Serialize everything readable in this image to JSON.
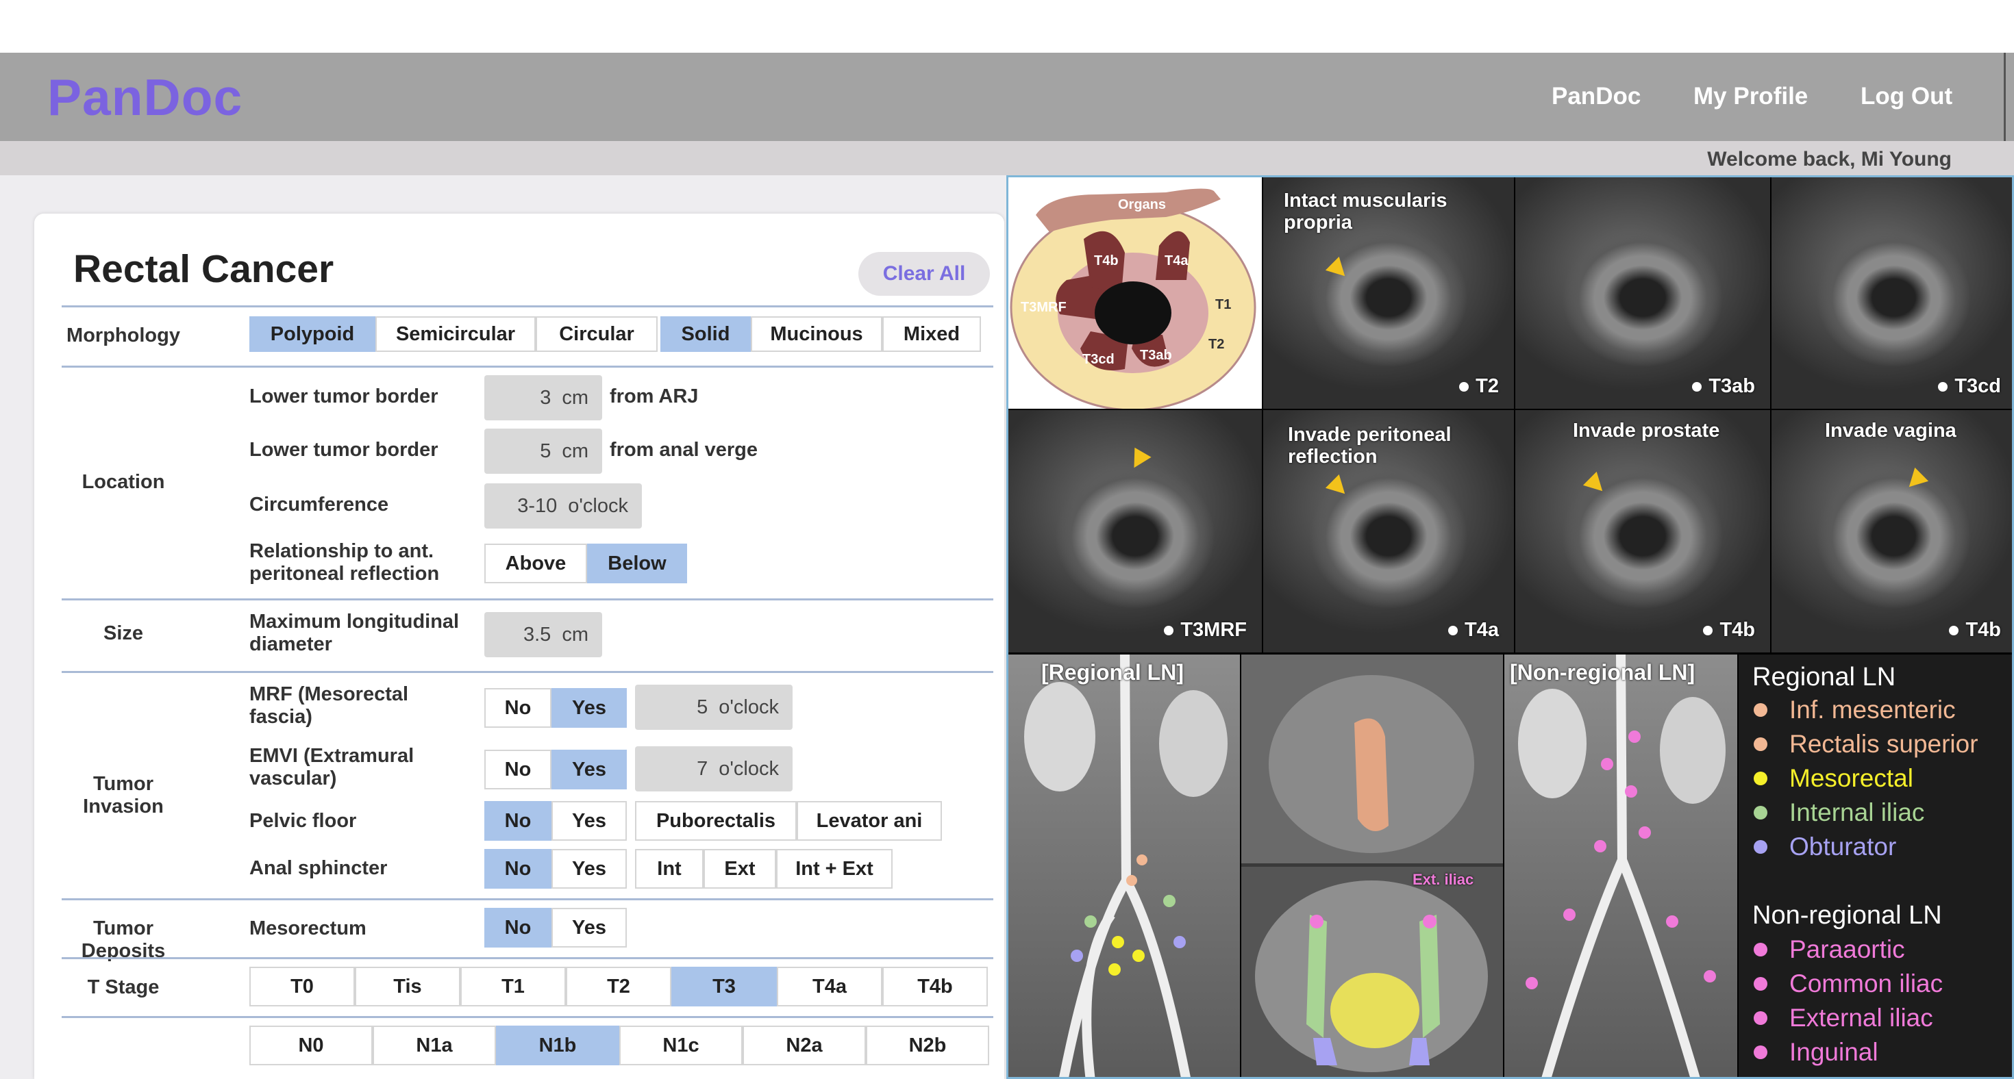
{
  "header": {
    "brand": "PanDoc",
    "nav": [
      "PanDoc",
      "My Profile",
      "Log Out"
    ],
    "welcome": "Welcome back, Mi Young"
  },
  "form": {
    "title": "Rectal Cancer",
    "clear_all": "Clear All",
    "morphology": {
      "label": "Morphology",
      "options": [
        "Polypoid",
        "Semicircular",
        "Circular",
        "Solid",
        "Mucinous",
        "Mixed"
      ],
      "selected": [
        "Polypoid",
        "Solid"
      ]
    },
    "location": {
      "label": "Location",
      "lower_border_arj": {
        "label": "Lower tumor border",
        "value": "3",
        "unit": "cm",
        "suffix": "from ARJ"
      },
      "lower_border_av": {
        "label": "Lower tumor border",
        "value": "5",
        "unit": "cm",
        "suffix": "from anal verge"
      },
      "circumference": {
        "label": "Circumference",
        "value": "3-10",
        "unit": "o'clock"
      },
      "relationship": {
        "label_line1": "Relationship to ant.",
        "label_line2": "peritoneal reflection",
        "options": [
          "Above",
          "Below"
        ],
        "selected": "Below"
      }
    },
    "size": {
      "label": "Size",
      "field_line1": "Maximum longitudinal",
      "field_line2": "diameter",
      "value": "3.5",
      "unit": "cm"
    },
    "tumor_invasion": {
      "label": "Tumor Invasion",
      "mrf": {
        "label_line1": "MRF (Mesorectal",
        "label_line2": "fascia)",
        "options": [
          "No",
          "Yes"
        ],
        "selected": "Yes",
        "value": "5",
        "unit": "o'clock"
      },
      "emvi": {
        "label_line1": "EMVI (Extramural",
        "label_line2": "vascular)",
        "options": [
          "No",
          "Yes"
        ],
        "selected": "Yes",
        "value": "7",
        "unit": "o'clock"
      },
      "pelvic_floor": {
        "label": "Pelvic floor",
        "options": [
          "No",
          "Yes",
          "Puborectalis",
          "Levator ani"
        ],
        "selected": "No"
      },
      "anal_sphincter": {
        "label": "Anal sphincter",
        "options": [
          "No",
          "Yes",
          "Int",
          "Ext",
          "Int + Ext"
        ],
        "selected": "No"
      }
    },
    "tumor_deposits": {
      "label": "Tumor Deposits",
      "mesorectum": {
        "label": "Mesorectum",
        "options": [
          "No",
          "Yes"
        ],
        "selected": "No"
      }
    },
    "t_stage": {
      "label": "T Stage",
      "options": [
        "T0",
        "Tis",
        "T1",
        "T2",
        "T3",
        "T4a",
        "T4b"
      ],
      "selected": "T3"
    },
    "n_stage": {
      "options": [
        "N0",
        "N1a",
        "N1b",
        "N1c",
        "N2a",
        "N2b"
      ],
      "selected": "N1b"
    }
  },
  "reference": {
    "diagram_labels": [
      "Organs",
      "T4b",
      "T4a",
      "T3MRF",
      "T1",
      "T2",
      "T3cd",
      "T3ab"
    ],
    "tiles": [
      {
        "caption": "Intact muscularis propria",
        "tag": "T2"
      },
      {
        "caption": "",
        "tag": "T3ab"
      },
      {
        "caption": "",
        "tag": "T3cd"
      },
      {
        "caption": "",
        "tag": "T3MRF"
      },
      {
        "caption": "Invade peritoneal reflection",
        "tag": "T4a"
      },
      {
        "caption": "Invade prostate",
        "tag": "T4b"
      },
      {
        "caption": "Invade vagina",
        "tag": "T4b"
      }
    ],
    "ln_captions": [
      "[Regional LN]",
      "[Non-regional LN]"
    ],
    "ct_label": "Ext. iliac",
    "legend": {
      "regional_title": "Regional LN",
      "regional": [
        {
          "name": "Inf. mesenteric",
          "color": "#f2b894"
        },
        {
          "name": "Rectalis superior",
          "color": "#f2b894"
        },
        {
          "name": "Mesorectal",
          "color": "#f5ef2a"
        },
        {
          "name": "Internal iliac",
          "color": "#a8d494"
        },
        {
          "name": "Obturator",
          "color": "#a7a2f2"
        }
      ],
      "nonregional_title": "Non-regional LN",
      "nonregional": [
        {
          "name": "Paraaortic",
          "color": "#f07ad9"
        },
        {
          "name": "Common iliac",
          "color": "#f07ad9"
        },
        {
          "name": "External iliac",
          "color": "#f07ad9"
        },
        {
          "name": "Inguinal",
          "color": "#f07ad9"
        }
      ]
    }
  }
}
